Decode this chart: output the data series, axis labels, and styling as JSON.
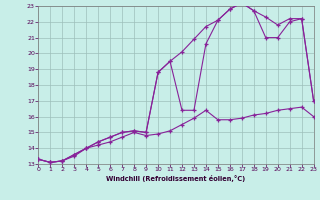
{
  "xlabel": "Windchill (Refroidissement éolien,°C)",
  "xlim": [
    0,
    23
  ],
  "ylim": [
    13,
    23
  ],
  "xticks": [
    0,
    1,
    2,
    3,
    4,
    5,
    6,
    7,
    8,
    9,
    10,
    11,
    12,
    13,
    14,
    15,
    16,
    17,
    18,
    19,
    20,
    21,
    22,
    23
  ],
  "yticks": [
    13,
    14,
    15,
    16,
    17,
    18,
    19,
    20,
    21,
    22,
    23
  ],
  "bg_color": "#c8eee8",
  "grid_color": "#9dbfbb",
  "line_color": "#882299",
  "curve_flat_x": [
    0,
    1,
    2,
    3,
    4,
    5,
    6,
    7,
    8,
    9,
    10,
    11,
    12,
    13,
    14,
    15,
    16,
    17,
    18,
    19,
    20,
    21,
    22,
    23
  ],
  "curve_flat_y": [
    13.3,
    13.1,
    13.2,
    13.5,
    14.0,
    14.2,
    14.4,
    14.7,
    15.0,
    14.8,
    14.9,
    15.1,
    15.5,
    15.9,
    16.4,
    15.8,
    15.8,
    15.9,
    16.1,
    16.2,
    16.4,
    16.5,
    16.6,
    16.0
  ],
  "curve_upper_x": [
    0,
    1,
    2,
    3,
    4,
    5,
    6,
    7,
    8,
    9,
    10,
    11,
    12,
    13,
    14,
    15,
    16,
    17,
    18,
    19,
    20,
    21,
    22,
    23
  ],
  "curve_upper_y": [
    13.3,
    13.1,
    13.2,
    13.6,
    14.0,
    14.4,
    14.7,
    15.0,
    15.1,
    15.0,
    18.8,
    19.5,
    20.1,
    20.9,
    21.7,
    22.1,
    22.8,
    23.2,
    22.7,
    22.3,
    21.8,
    22.2,
    22.2,
    17.0
  ],
  "curve_peak_x": [
    0,
    1,
    2,
    3,
    4,
    5,
    6,
    7,
    8,
    9,
    10,
    11,
    12,
    13,
    14,
    15,
    16,
    17,
    18,
    19,
    20,
    21,
    22,
    23
  ],
  "curve_peak_y": [
    13.3,
    13.1,
    13.2,
    13.6,
    14.0,
    14.4,
    14.7,
    15.0,
    15.1,
    15.0,
    18.8,
    19.5,
    16.4,
    16.4,
    20.6,
    22.1,
    22.8,
    23.2,
    22.7,
    21.0,
    21.0,
    22.0,
    22.2,
    17.0
  ]
}
